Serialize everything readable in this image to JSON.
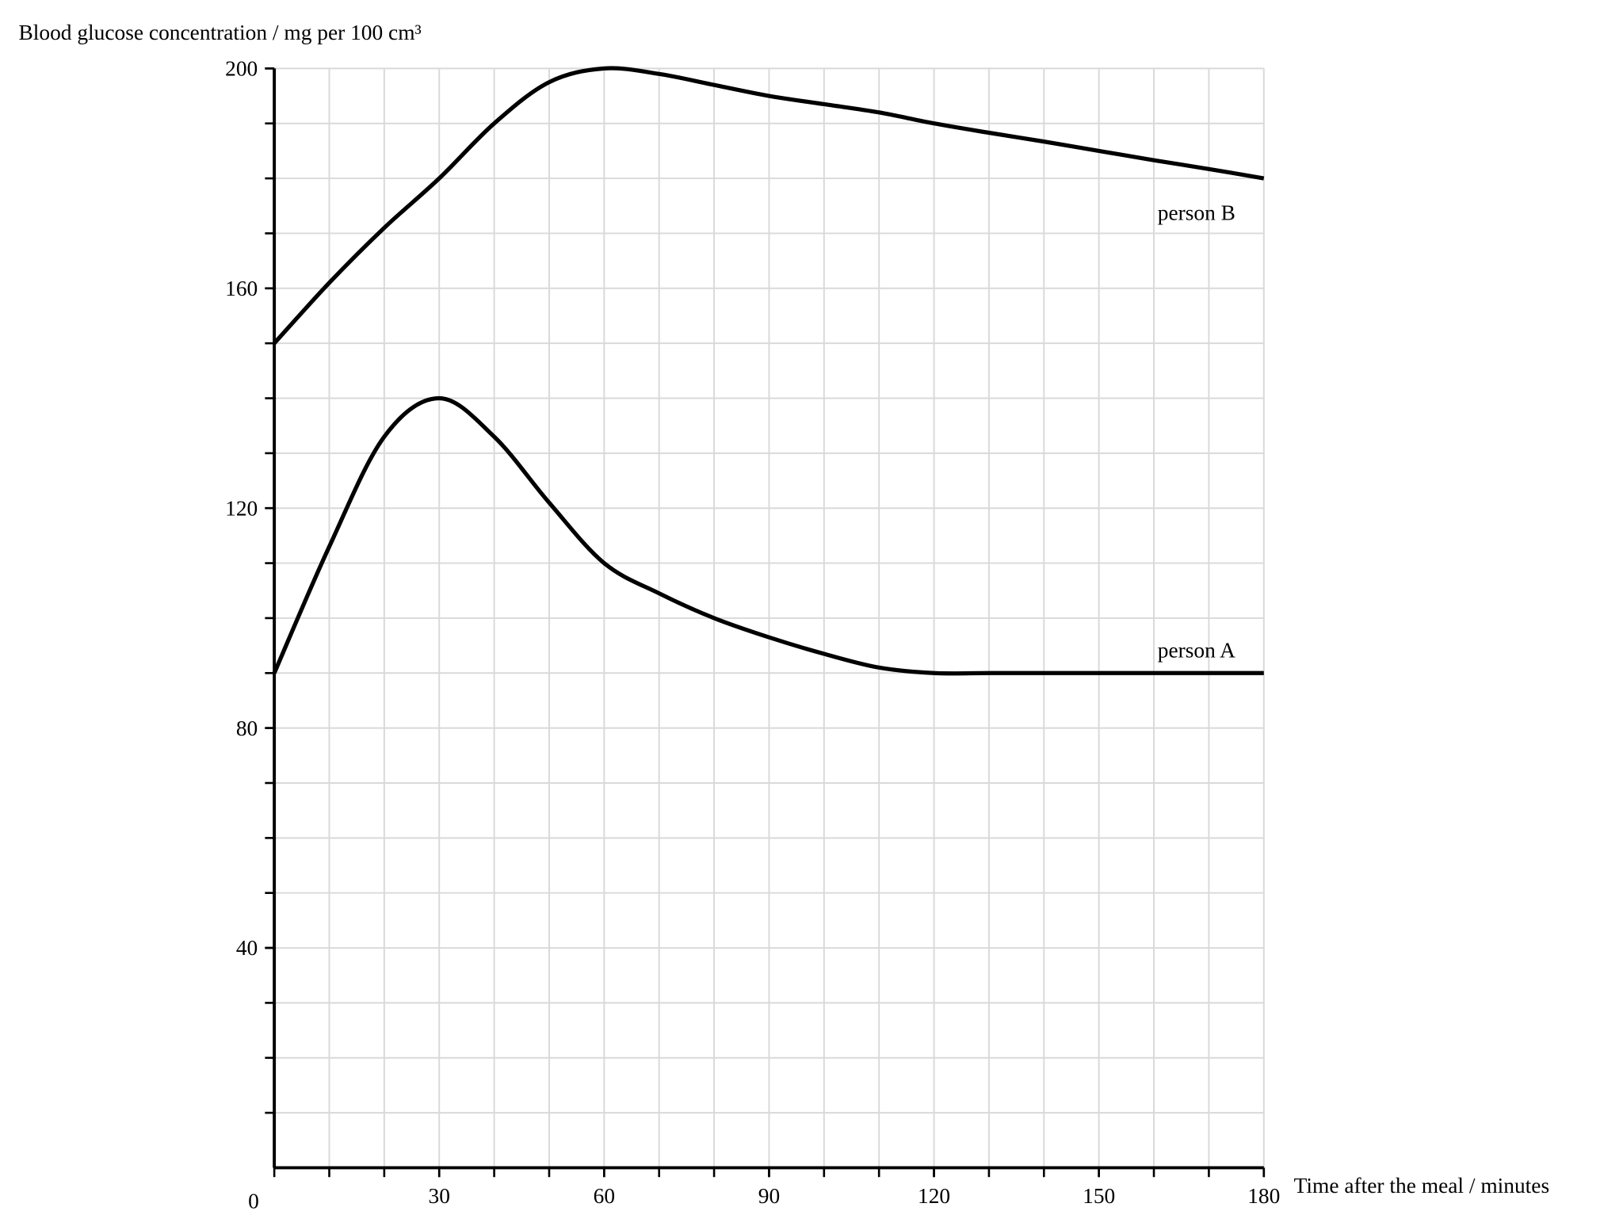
{
  "chart_data": {
    "type": "line",
    "y_label": "Blood glucose concentration / mg per 100 cm³",
    "x_label": "Time after the meal / minutes",
    "x": [
      0,
      10,
      20,
      30,
      40,
      50,
      60,
      70,
      80,
      90,
      100,
      110,
      120,
      130,
      140,
      150,
      160,
      170,
      180
    ],
    "series": [
      {
        "name": "person A",
        "color": "#000000",
        "values": [
          90,
          113,
          133,
          140,
          133,
          121,
          110,
          104.5,
          100,
          96.5,
          93.5,
          91,
          90,
          90,
          90,
          90,
          90,
          90,
          90
        ]
      },
      {
        "name": "person B",
        "color": "#000000",
        "values": [
          150,
          161,
          171,
          180,
          190,
          197.5,
          200,
          199,
          197,
          195,
          193.5,
          192,
          190,
          188.3,
          186.7,
          185,
          183.3,
          181.7,
          180
        ]
      }
    ],
    "xlim": [
      0,
      180
    ],
    "xticks": [
      0,
      30,
      60,
      90,
      120,
      150,
      180
    ],
    "ylim": [
      0,
      200
    ],
    "yticks": [
      40,
      80,
      120,
      160,
      200
    ],
    "grid": true
  }
}
